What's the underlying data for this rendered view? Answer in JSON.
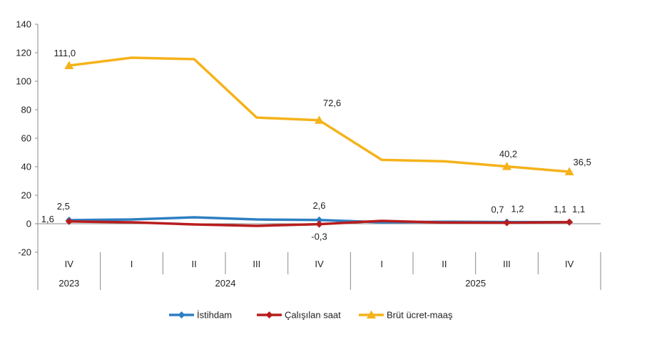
{
  "chart_data": {
    "type": "line",
    "categories": [
      "IV",
      "I",
      "II",
      "III",
      "IV",
      "I",
      "II",
      "III",
      "IV"
    ],
    "years": [
      {
        "label": "2023",
        "from": 0,
        "to": 0
      },
      {
        "label": "2024",
        "from": 1,
        "to": 4
      },
      {
        "label": "2025",
        "from": 5,
        "to": 8
      }
    ],
    "ylim": [
      -20,
      140
    ],
    "yticks": [
      "-20",
      "0",
      "20",
      "40",
      "60",
      "80",
      "100",
      "120",
      "140"
    ],
    "grid": false,
    "legend": "bottom",
    "series": [
      {
        "name": "İstihdam",
        "color": "#2E7FC2",
        "marker": "diamond",
        "values": [
          2.5,
          3.0,
          4.5,
          3.0,
          2.6,
          1.0,
          1.4,
          1.2,
          1.1
        ],
        "labels": [
          {
            "index": 0,
            "text": "2,5"
          },
          {
            "index": 4,
            "text": "2,6"
          },
          {
            "index": 7,
            "text": "1,2"
          },
          {
            "index": 8,
            "text": "1,1"
          }
        ]
      },
      {
        "name": "Çalışılan saat",
        "color": "#B81D1D",
        "marker": "diamond",
        "values": [
          1.6,
          1.0,
          -0.5,
          -1.5,
          -0.3,
          2.0,
          0.8,
          0.7,
          1.1
        ],
        "labels": [
          {
            "index": 0,
            "text": "1,6"
          },
          {
            "index": 4,
            "text": "-0,3"
          },
          {
            "index": 7,
            "text": "0,7"
          },
          {
            "index": 8,
            "text": "1,1"
          }
        ]
      },
      {
        "name": "Brüt ücret-maaş",
        "color": "#F5B21A",
        "marker": "triangle",
        "values": [
          111.0,
          116.5,
          115.5,
          74.5,
          72.6,
          44.8,
          43.8,
          40.2,
          36.5
        ],
        "labels": [
          {
            "index": 0,
            "text": "111,0"
          },
          {
            "index": 4,
            "text": "72,6"
          },
          {
            "index": 7,
            "text": "40,2"
          },
          {
            "index": 8,
            "text": "36,5"
          }
        ]
      }
    ]
  }
}
